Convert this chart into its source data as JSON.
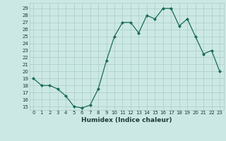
{
  "x": [
    0,
    1,
    2,
    3,
    4,
    5,
    6,
    7,
    8,
    9,
    10,
    11,
    12,
    13,
    14,
    15,
    16,
    17,
    18,
    19,
    20,
    21,
    22,
    23
  ],
  "y": [
    19.0,
    18.0,
    18.0,
    17.5,
    16.5,
    15.0,
    14.8,
    15.2,
    17.5,
    21.5,
    25.0,
    27.0,
    27.0,
    25.5,
    28.0,
    27.5,
    29.0,
    29.0,
    26.5,
    27.5,
    25.0,
    22.5,
    23.0,
    20.0
  ],
  "xlabel": "Humidex (Indice chaleur)",
  "line_color": "#1a6b5a",
  "marker_color": "#1a6b5a",
  "bg_color": "#cce8e4",
  "grid_color": "#aaccca",
  "xlim": [
    -0.5,
    23.5
  ],
  "ylim": [
    14.5,
    29.8
  ],
  "yticks": [
    15,
    16,
    17,
    18,
    19,
    20,
    21,
    22,
    23,
    24,
    25,
    26,
    27,
    28,
    29
  ],
  "xticks": [
    0,
    1,
    2,
    3,
    4,
    5,
    6,
    7,
    8,
    9,
    10,
    11,
    12,
    13,
    14,
    15,
    16,
    17,
    18,
    19,
    20,
    21,
    22,
    23
  ]
}
